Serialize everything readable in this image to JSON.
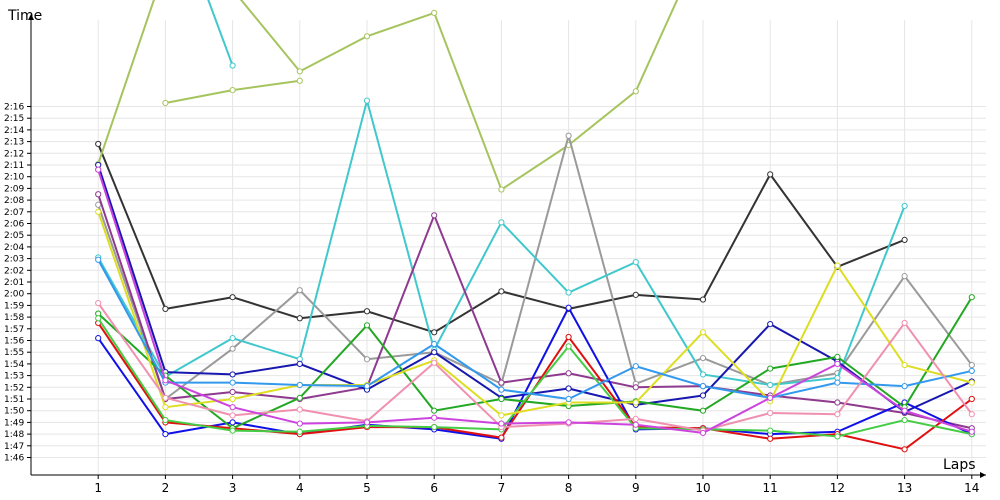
{
  "chart_data": {
    "type": "line",
    "xlabel": "Laps",
    "ylabel": "Time",
    "x": [
      1,
      2,
      3,
      4,
      5,
      6,
      7,
      8,
      9,
      10,
      11,
      12,
      13,
      14
    ],
    "xlim": [
      0,
      14
    ],
    "ylim": [
      "1:44.5",
      "2:18.5"
    ],
    "y_tick_labels": [
      "1:46",
      "1:47",
      "1:48",
      "1:49",
      "1:50",
      "1:51",
      "1:52",
      "1:53",
      "1:54",
      "1:55",
      "1:56",
      "1:57",
      "1:58",
      "1:59",
      "2:00",
      "2:01",
      "2:02",
      "2:03",
      "2:04",
      "2:05",
      "2:06",
      "2:07",
      "2:08",
      "2:09",
      "2:10",
      "2:11",
      "2:12",
      "2:13",
      "2:14",
      "2:15",
      "2:16"
    ],
    "grid": true,
    "series": [
      {
        "color": "#333333",
        "values": [
          "2:12.8",
          "1:58.7",
          "1:59.7",
          "1:57.9",
          "1:58.5",
          "1:56.7",
          "2:00.2",
          "1:58.7",
          "1:59.9",
          "1:59.5",
          "2:10.2",
          "2:02.3",
          "2:04.6",
          null
        ]
      },
      {
        "color": "#A6C45E",
        "values": [
          "2:11.1",
          "2:28.0",
          "2:26.0",
          "2:19.0",
          "2:22.0",
          "2:24.0",
          "2:08.9",
          "2:12.7",
          "2:17.3",
          "2:30.0",
          null,
          null,
          null,
          null
        ]
      },
      {
        "color": "#A6C45E",
        "values": [
          null,
          "2:16.3",
          "2:17.4",
          "2:18.2",
          null,
          null,
          null,
          null,
          null,
          null,
          null,
          null,
          null,
          null
        ]
      },
      {
        "color": "#9A9A9A",
        "values": [
          "2:07.6",
          "1:51.0",
          "1:55.3",
          "2:00.3",
          "1:54.4",
          "1:55.0",
          "1:52.3",
          "2:13.5",
          "1:52.3",
          "1:54.5",
          "1:52.2",
          "1:53.2",
          "2:01.5",
          "1:53.9"
        ]
      },
      {
        "color": "#40C8CC",
        "values": [
          "2:03.1",
          "1:52.9",
          "1:56.2",
          "1:54.4",
          "2:16.5",
          "1:55.2",
          "2:06.1",
          "2:00.1",
          "2:02.7",
          "1:53.1",
          "1:52.2",
          "1:52.8",
          "2:07.5",
          null
        ]
      },
      {
        "color": "#40C8CC",
        "values": [
          null,
          "2:35.0",
          "2:19.5",
          null,
          null,
          null,
          null,
          null,
          null,
          null,
          null,
          null,
          null,
          null
        ]
      },
      {
        "color": "#8E3A8E",
        "values": [
          "2:08.5",
          "1:51.0",
          "1:51.6",
          "1:51.0",
          "1:52.0",
          "2:06.7",
          "1:52.4",
          "1:53.2",
          "1:52.0",
          "1:52.1",
          "1:51.3",
          "1:50.7",
          "1:49.8",
          "1:48.5"
        ]
      },
      {
        "color": "#E08A1A",
        "values": [
          "2:10.6",
          null,
          null,
          null,
          null,
          null,
          null,
          null,
          null,
          null,
          null,
          null,
          null,
          null
        ]
      },
      {
        "color": "#1818B0",
        "values": [
          "2:11.0",
          "1:53.3",
          "1:53.1",
          "1:54.0",
          "1:51.8",
          "1:55.0",
          "1:51.1",
          "1:51.9",
          "1:50.5",
          "1:51.3",
          "1:57.4",
          "1:54.2",
          "1:49.9",
          "1:52.5"
        ]
      },
      {
        "color": "#1010E8",
        "values": [
          "1:56.2",
          "1:48.0",
          "1:49.0",
          "1:48.0",
          "1:48.8",
          "1:48.4",
          "1:47.6",
          "1:58.8",
          "1:48.4",
          "1:48.5",
          "1:48.0",
          "1:48.2",
          "1:50.7",
          "1:48.0"
        ]
      },
      {
        "color": "#E01010",
        "values": [
          "1:57.5",
          "1:49.0",
          "1:48.5",
          "1:48.0",
          "1:48.6",
          "1:48.6",
          "1:47.7",
          "1:56.3",
          "1:48.6",
          "1:48.5",
          "1:47.6",
          "1:48.0",
          "1:46.7",
          "1:51.0"
        ]
      },
      {
        "color": "#22A822",
        "values": [
          "1:58.3",
          "1:53.0",
          "1:48.5",
          "1:51.1",
          "1:57.3",
          "1:50.0",
          "1:51.0",
          "1:50.4",
          "1:50.8",
          "1:50.0",
          "1:53.6",
          "1:54.6",
          "1:50.3",
          "1:59.7"
        ]
      },
      {
        "color": "#44CC44",
        "values": [
          "1:57.9",
          "1:49.2",
          "1:48.3",
          "1:48.2",
          "1:48.7",
          "1:48.6",
          "1:48.4",
          "1:55.5",
          "1:48.5",
          "1:48.4",
          "1:48.3",
          "1:47.8",
          "1:49.2",
          "1:48.0"
        ]
      },
      {
        "color": "#DDDD22",
        "values": [
          "2:07.0",
          "1:50.3",
          "1:51.0",
          "1:52.2",
          "1:52.2",
          "1:54.3",
          "1:49.6",
          "1:50.7",
          "1:50.7",
          "1:56.7",
          "1:50.8",
          "2:02.4",
          "1:53.9",
          "1:52.4"
        ]
      },
      {
        "color": "#3399EE",
        "values": [
          "2:02.9",
          "1:52.4",
          "1:52.4",
          "1:52.2",
          "1:52.1",
          "1:55.7",
          "1:51.8",
          "1:51.0",
          "1:53.8",
          "1:52.1",
          "1:51.1",
          "1:52.4",
          "1:52.1",
          "1:53.4"
        ]
      },
      {
        "color": "#F090B0",
        "values": [
          "1:59.2",
          "1:51.1",
          "1:49.6",
          "1:50.1",
          "1:49.1",
          "1:54.1",
          "1:48.6",
          "1:48.9",
          "1:49.3",
          "1:48.3",
          "1:49.8",
          "1:49.7",
          "1:57.5",
          "1:49.7"
        ]
      },
      {
        "color": "#CC44DD",
        "values": [
          "2:10.6",
          "1:52.6",
          "1:50.3",
          "1:48.9",
          "1:49.0",
          "1:49.4",
          "1:48.9",
          "1:49.0",
          "1:48.8",
          "1:48.1",
          "1:51.1",
          "1:54.0",
          "1:50.0",
          "1:48.2"
        ]
      }
    ]
  }
}
